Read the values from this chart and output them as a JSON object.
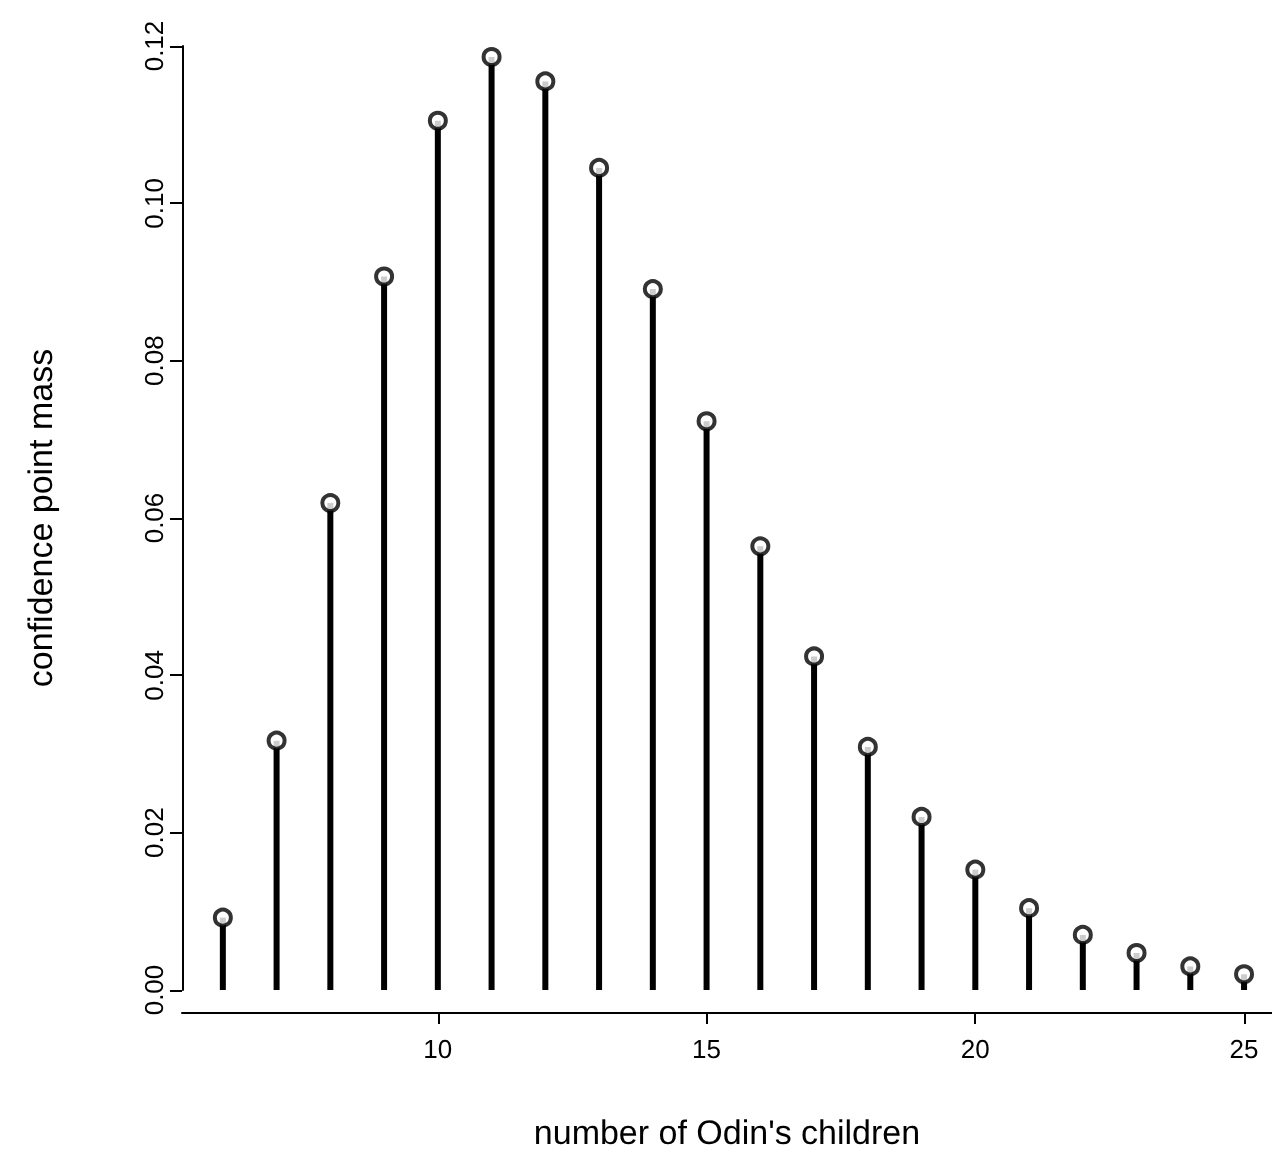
{
  "chart_data": {
    "type": "lollipop",
    "xlabel": "number of Odin's children",
    "ylabel": "confidence point mass",
    "x": [
      6,
      7,
      8,
      9,
      10,
      11,
      12,
      13,
      14,
      15,
      16,
      17,
      18,
      19,
      20,
      21,
      22,
      23,
      24,
      25
    ],
    "values": [
      0.0092,
      0.0317,
      0.0619,
      0.0907,
      0.1105,
      0.1186,
      0.1155,
      0.1045,
      0.0891,
      0.0723,
      0.0564,
      0.0424,
      0.0309,
      0.022,
      0.0153,
      0.0104,
      0.007,
      0.0047,
      0.003,
      0.002
    ],
    "color": "#000000",
    "marker": "circle",
    "xlim": [
      5.24,
      25.52
    ],
    "xticks": [
      10,
      15,
      20,
      25
    ],
    "ylim": [
      0,
      0.12
    ],
    "yticks": [
      {
        "value": 0,
        "label": "0.00"
      },
      {
        "value": 0.02,
        "label": "0.02"
      },
      {
        "value": 0.04,
        "label": "0.04"
      },
      {
        "value": 0.06,
        "label": "0.06"
      },
      {
        "value": 0.08,
        "label": "0.08"
      },
      {
        "value": 0.1,
        "label": "0.10"
      },
      {
        "value": 0.12,
        "label": "0.12"
      }
    ],
    "line_style": "solid"
  }
}
